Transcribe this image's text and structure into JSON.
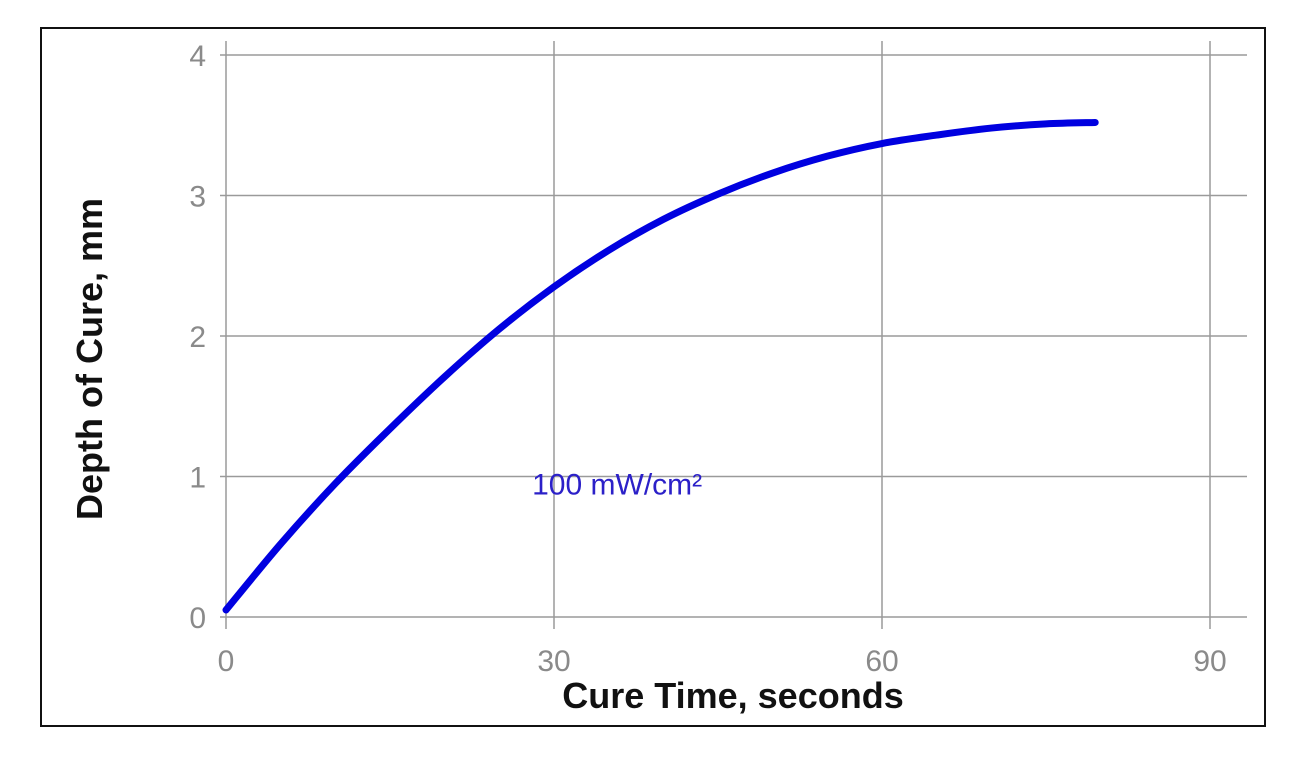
{
  "chart_data": {
    "type": "line",
    "title": "",
    "xlabel": "Cure Time, seconds",
    "ylabel": "Depth of Cure, mm",
    "xlim": [
      0,
      90
    ],
    "ylim": [
      0,
      4
    ],
    "x_ticks": [
      0,
      30,
      60,
      90
    ],
    "y_ticks": [
      0,
      1,
      2,
      3,
      4
    ],
    "grid": true,
    "legend": "none",
    "annotations": [
      {
        "text": "100 mW/cm²",
        "x": 28,
        "y": 0.95,
        "color": "#2b20c8"
      }
    ],
    "series": [
      {
        "color": "#0000e0",
        "x": [
          0,
          5,
          10,
          15,
          20,
          25,
          30,
          35,
          40,
          45,
          50,
          55,
          60,
          65,
          70,
          75,
          79.5
        ],
        "y": [
          0.05,
          0.52,
          0.95,
          1.34,
          1.71,
          2.05,
          2.35,
          2.61,
          2.83,
          3.01,
          3.16,
          3.28,
          3.37,
          3.43,
          3.48,
          3.51,
          3.52
        ]
      }
    ]
  }
}
